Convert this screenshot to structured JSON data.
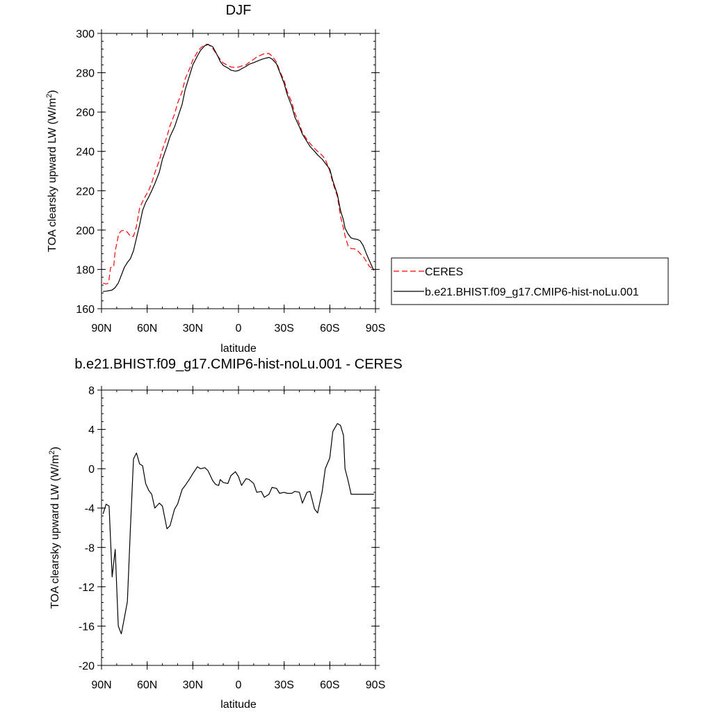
{
  "chart_data": [
    {
      "type": "line",
      "title": "DJF",
      "xlabel": "latitude",
      "ylabel": "TOA clearsky upward LW (W/m",
      "ylabel_sup": "2",
      "ylabel_end": ")",
      "xlim": [
        90,
        -90
      ],
      "ylim": [
        160,
        300
      ],
      "xticks": [
        90,
        60,
        30,
        0,
        -30,
        -60,
        -90
      ],
      "xtick_labels": [
        "90N",
        "60N",
        "30N",
        "0",
        "30S",
        "60S",
        "90S"
      ],
      "yticks": [
        160,
        180,
        200,
        220,
        240,
        260,
        280,
        300
      ],
      "ytick_labels": [
        "160",
        "180",
        "200",
        "220",
        "240",
        "260",
        "280",
        "300"
      ],
      "legend_position": "right",
      "series": [
        {
          "name": "CERES",
          "color": "#ff0000",
          "dash": "dashed",
          "x": [
            89,
            87,
            86,
            85,
            84,
            83,
            82,
            81,
            80,
            79,
            78,
            77,
            75,
            73,
            71,
            69,
            67,
            65,
            63,
            61,
            59,
            57,
            55,
            52,
            50,
            47,
            45,
            42,
            40,
            37,
            35,
            32,
            30,
            27,
            25,
            22,
            20,
            17,
            15,
            13,
            12,
            10,
            7,
            5,
            2,
            0,
            -2,
            -5,
            -7,
            -10,
            -12,
            -15,
            -17,
            -20,
            -22,
            -25,
            -27,
            -30,
            -32,
            -35,
            -37,
            -40,
            -42,
            -45,
            -47,
            -50,
            -52,
            -55,
            -57,
            -60,
            -62,
            -65,
            -66,
            -67,
            -69,
            -70,
            -72,
            -74,
            -76,
            -78,
            -80,
            -82,
            -84,
            -86,
            -88,
            -89
          ],
          "y": [
            173.0,
            172.6,
            172.8,
            175.0,
            181.0,
            181.2,
            181.4,
            189.5,
            193.0,
            197.0,
            198.8,
            199.6,
            199.9,
            198.9,
            196.8,
            196.8,
            202.0,
            211.0,
            214.5,
            217.5,
            220.2,
            224.0,
            229.0,
            235.5,
            241.0,
            247.5,
            253.0,
            259.0,
            264.5,
            270.5,
            277.0,
            282.3,
            286.5,
            290.5,
            292.5,
            294.3,
            294.5,
            292.5,
            290.0,
            287.8,
            286.8,
            284.9,
            283.7,
            282.9,
            282.7,
            282.9,
            283.4,
            284.0,
            285.3,
            286.8,
            288.0,
            289.0,
            289.7,
            289.8,
            288.5,
            285.4,
            281.0,
            276.0,
            270.5,
            265.0,
            259.5,
            254.0,
            249.5,
            246.0,
            244.0,
            241.5,
            240.0,
            238.0,
            236.0,
            230.0,
            224.0,
            217.0,
            212.0,
            207.0,
            201.0,
            197.0,
            192.0,
            190.5,
            190.5,
            189.8,
            188.0,
            186.5,
            184.0,
            181.5,
            180.5,
            179.5
          ]
        },
        {
          "name": "b.e21.BHIST.f09_g17.CMIP6-hist-noLu.001",
          "color": "#000000",
          "dash": "solid",
          "x": [
            89,
            87,
            85,
            83,
            81,
            80,
            79,
            77,
            75,
            73,
            71,
            69,
            67,
            65,
            63,
            61,
            59,
            57,
            55,
            52,
            50,
            47,
            45,
            42,
            40,
            37,
            35,
            32,
            30,
            27,
            25,
            22,
            20,
            17,
            15,
            13,
            12,
            10,
            7,
            5,
            2,
            0,
            -2,
            -5,
            -7,
            -10,
            -12,
            -15,
            -17,
            -20,
            -22,
            -25,
            -27,
            -30,
            -32,
            -35,
            -37,
            -40,
            -42,
            -45,
            -47,
            -50,
            -52,
            -55,
            -57,
            -60,
            -62,
            -65,
            -66,
            -67,
            -69,
            -70,
            -72,
            -74,
            -76,
            -78,
            -80,
            -82,
            -84,
            -86,
            -88,
            -89
          ],
          "y": [
            168.8,
            168.9,
            169.2,
            169.5,
            170.8,
            172.0,
            173.0,
            177.0,
            181.0,
            183.5,
            185.5,
            189.5,
            196.0,
            202.5,
            210.0,
            214.0,
            216.8,
            220.0,
            223.5,
            229.5,
            236.0,
            242.5,
            247.5,
            252.5,
            257.0,
            264.0,
            271.5,
            279.0,
            284.0,
            288.5,
            291.3,
            293.8,
            294.3,
            293.3,
            290.5,
            287.5,
            285.7,
            283.7,
            282.4,
            281.3,
            280.8,
            281.1,
            282.0,
            283.2,
            284.3,
            285.1,
            285.8,
            286.7,
            287.2,
            287.8,
            287.0,
            284.5,
            280.5,
            274.5,
            269.0,
            263.0,
            257.5,
            252.5,
            248.8,
            245.0,
            242.5,
            240.0,
            238.2,
            236.0,
            234.0,
            231.0,
            225.0,
            218.0,
            214.0,
            210.0,
            205.0,
            201.0,
            198.0,
            196.0,
            195.5,
            195.3,
            194.5,
            192.0,
            188.0,
            184.5,
            181.0,
            179.5
          ]
        }
      ]
    },
    {
      "type": "line",
      "title": "b.e21.BHIST.f09_g17.CMIP6-hist-noLu.001 - CERES",
      "xlabel": "latitude",
      "ylabel": "TOA clearsky upward LW (W/m",
      "ylabel_sup": "2",
      "ylabel_end": ")",
      "xlim": [
        90,
        -90
      ],
      "ylim": [
        -20,
        8
      ],
      "xticks": [
        90,
        60,
        30,
        0,
        -30,
        -60,
        -90
      ],
      "xtick_labels": [
        "90N",
        "60N",
        "30N",
        "0",
        "30S",
        "60S",
        "90S"
      ],
      "yticks": [
        -20,
        -16,
        -12,
        -8,
        -4,
        0,
        4,
        8
      ],
      "ytick_labels": [
        "-20",
        "-16",
        "-12",
        "-8",
        "-4",
        "0",
        "4",
        "8"
      ],
      "series": [
        {
          "color": "#000000",
          "dash": "solid",
          "x": [
            89,
            87,
            85,
            83,
            81,
            79,
            77,
            75,
            73,
            71,
            69,
            67,
            65,
            63,
            61,
            59,
            57,
            55,
            52,
            50,
            47,
            45,
            42,
            40,
            37,
            35,
            32,
            30,
            27,
            25,
            22,
            20,
            17,
            15,
            13,
            12,
            10,
            7,
            5,
            2,
            0,
            -2,
            -5,
            -7,
            -10,
            -12,
            -15,
            -17,
            -20,
            -22,
            -25,
            -27,
            -30,
            -32,
            -35,
            -37,
            -40,
            -42,
            -45,
            -47,
            -50,
            -52,
            -55,
            -57,
            -60,
            -62,
            -65,
            -67,
            -69,
            -70,
            -72,
            -74,
            -76,
            -78,
            -80,
            -82,
            -84,
            -86,
            -88,
            -89
          ],
          "y": [
            -4.6,
            -3.6,
            -3.8,
            -11.0,
            -8.2,
            -16.0,
            -16.8,
            -15.2,
            -13.5,
            -6.0,
            1.0,
            1.6,
            0.5,
            0.3,
            -1.5,
            -2.2,
            -2.6,
            -4.0,
            -3.5,
            -3.8,
            -6.1,
            -5.8,
            -4.1,
            -3.6,
            -2.1,
            -1.7,
            -1.0,
            -0.5,
            0.2,
            0.0,
            0.1,
            -0.2,
            -1.2,
            -1.6,
            -1.7,
            -1.1,
            -1.4,
            -1.5,
            -0.7,
            -0.3,
            -0.8,
            -1.7,
            -1.0,
            -1.1,
            -1.5,
            -2.4,
            -2.3,
            -2.9,
            -2.6,
            -1.9,
            -2.0,
            -2.5,
            -2.4,
            -2.5,
            -2.5,
            -2.3,
            -2.4,
            -3.5,
            -2.4,
            -2.3,
            -4.1,
            -4.5,
            -2.3,
            0.0,
            1.1,
            3.8,
            4.6,
            4.4,
            3.4,
            0.0,
            -1.2,
            -2.6,
            -2.6,
            -2.6,
            -2.6,
            -2.6,
            -2.6,
            -2.6,
            -2.6,
            -2.6
          ]
        }
      ]
    }
  ]
}
